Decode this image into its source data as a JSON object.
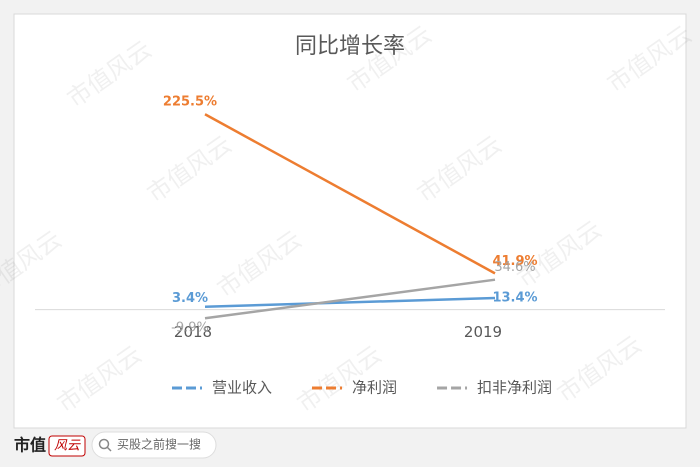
{
  "chart_data": {
    "type": "line",
    "title": "同比增长率",
    "categories": [
      "2018",
      "2019"
    ],
    "series": [
      {
        "name": "营业收入",
        "color": "#5b9bd5",
        "values": [
          3.4,
          13.4
        ],
        "value_labels": [
          "3.4%",
          "13.4%"
        ]
      },
      {
        "name": "净利润",
        "color": "#ed7d31",
        "values": [
          225.5,
          41.9
        ],
        "value_labels": [
          "225.5%",
          "41.9%"
        ]
      },
      {
        "name": "扣非净利润",
        "color": "#a5a5a5",
        "values": [
          -9.9,
          34.6
        ],
        "value_labels": [
          "-9.9%",
          "34.6%"
        ]
      }
    ],
    "ylim": [
      -50,
      250
    ],
    "legend": "bottom"
  },
  "watermark": "市值风云",
  "footer": {
    "brand": "市值",
    "brand_mark": "风云",
    "search": "买股之前搜一搜"
  }
}
